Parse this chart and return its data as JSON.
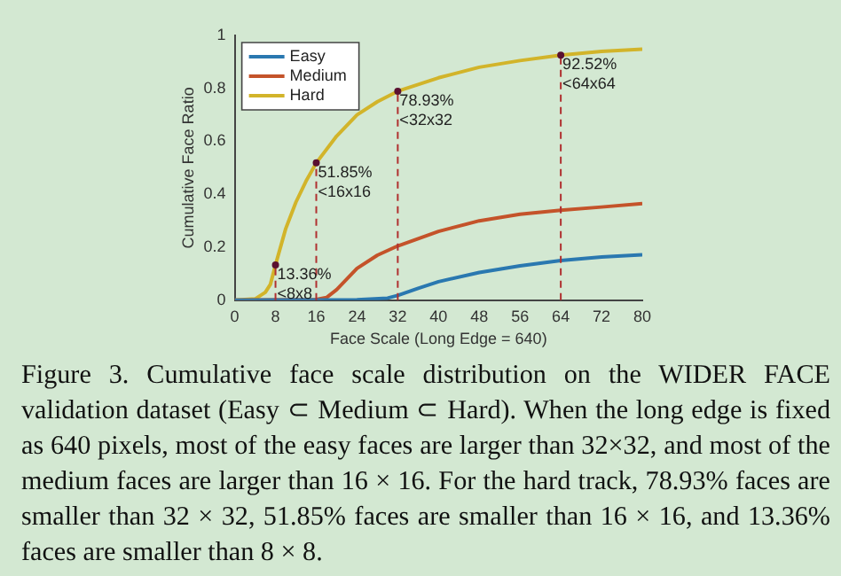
{
  "chart_data": {
    "type": "line",
    "xlabel": "Face Scale (Long Edge = 640)",
    "ylabel": "Cumulative Face Ratio",
    "xlim": [
      0,
      80
    ],
    "xticks": [
      0,
      8,
      16,
      24,
      32,
      40,
      48,
      56,
      64,
      72,
      80
    ],
    "ylim": [
      0,
      1
    ],
    "yticks": [
      0,
      0.2,
      0.4,
      0.6,
      0.8,
      1
    ],
    "grid": false,
    "legend": "top left",
    "line_style": "solid",
    "series": [
      {
        "name": "Easy",
        "color": "#2a78b0",
        "x": [
          0,
          24,
          30,
          32,
          36,
          40,
          48,
          56,
          64,
          72,
          80
        ],
        "values": [
          0,
          0.002,
          0.008,
          0.018,
          0.045,
          0.07,
          0.105,
          0.13,
          0.15,
          0.163,
          0.172
        ]
      },
      {
        "name": "Medium",
        "color": "#c4532a",
        "x": [
          0,
          16,
          18,
          20,
          24,
          28,
          32,
          40,
          48,
          56,
          64,
          72,
          80
        ],
        "values": [
          0,
          0.003,
          0.01,
          0.04,
          0.12,
          0.17,
          0.205,
          0.26,
          0.3,
          0.325,
          0.34,
          0.352,
          0.365
        ]
      },
      {
        "name": "Hard",
        "color": "#d2b42a",
        "x": [
          0,
          4,
          6,
          7,
          8,
          10,
          12,
          14,
          16,
          20,
          24,
          28,
          32,
          40,
          48,
          56,
          64,
          72,
          80
        ],
        "values": [
          0,
          0.005,
          0.03,
          0.06,
          0.1336,
          0.27,
          0.37,
          0.45,
          0.5185,
          0.62,
          0.7,
          0.75,
          0.7893,
          0.84,
          0.88,
          0.905,
          0.9252,
          0.94,
          0.948
        ]
      }
    ],
    "ref_lines": [
      {
        "axis": "x",
        "value": 8,
        "label": null,
        "color": "#b03030",
        "line_style": "dashed"
      },
      {
        "axis": "x",
        "value": 16,
        "label": null,
        "color": "#b03030",
        "line_style": "dashed"
      },
      {
        "axis": "x",
        "value": 32,
        "label": null,
        "color": "#b03030",
        "line_style": "dashed"
      },
      {
        "axis": "x",
        "value": 64,
        "label": null,
        "color": "#b03030",
        "line_style": "dashed"
      }
    ],
    "annotations": [
      {
        "text": "13.36%\n<8x8",
        "x": 8,
        "y": 0.1336
      },
      {
        "text": "51.85%\n<16x16",
        "x": 16,
        "y": 0.5185
      },
      {
        "text": "78.93%\n<32x32",
        "x": 32,
        "y": 0.7893
      },
      {
        "text": "92.52%\n<64x64",
        "x": 64,
        "y": 0.9252
      },
      "Figure 3. Cumulative face scale distribution on the WIDER FACE validation dataset (Easy ⊂ Medium ⊂ Hard). When the long edge is fixed as 640 pixels, most of the easy faces are larger than 32×32, and most of the medium faces are larger than 16 × 16. For the hard track, 78.93% faces are smaller than 32 × 32, 51.85% faces are smaller than 16 × 16, and 13.36% faces are smaller than 8 × 8."
    ]
  }
}
